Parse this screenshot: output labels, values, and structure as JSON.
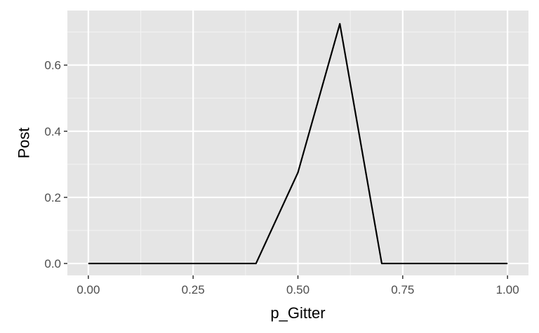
{
  "chart_data": {
    "type": "line",
    "xlabel": "p_Gitter",
    "ylabel": "Post",
    "xlim": [
      -0.05,
      1.05
    ],
    "ylim": [
      -0.036,
      0.765
    ],
    "x_ticks": [
      0.0,
      0.25,
      0.5,
      0.75,
      1.0
    ],
    "x_tick_labels": [
      "0.00",
      "0.25",
      "0.50",
      "0.75",
      "1.00"
    ],
    "y_ticks": [
      0.0,
      0.2,
      0.4,
      0.6
    ],
    "y_tick_labels": [
      "0.0",
      "0.2",
      "0.4",
      "0.6"
    ],
    "grid": true,
    "series": [
      {
        "x": [
          0.0,
          0.1,
          0.2,
          0.3,
          0.4,
          0.5,
          0.6,
          0.7,
          0.8,
          0.9,
          1.0
        ],
        "values": [
          0.0,
          0.0,
          0.0,
          0.0,
          0.0,
          0.275,
          0.725,
          0.0,
          0.0,
          0.0,
          0.0
        ]
      }
    ],
    "colors": {
      "panel_background": "#e5e5e5",
      "grid_major": "#ffffff",
      "grid_minor": "#f2f2f2",
      "line": "#000000",
      "tick_mark": "#333333"
    }
  }
}
